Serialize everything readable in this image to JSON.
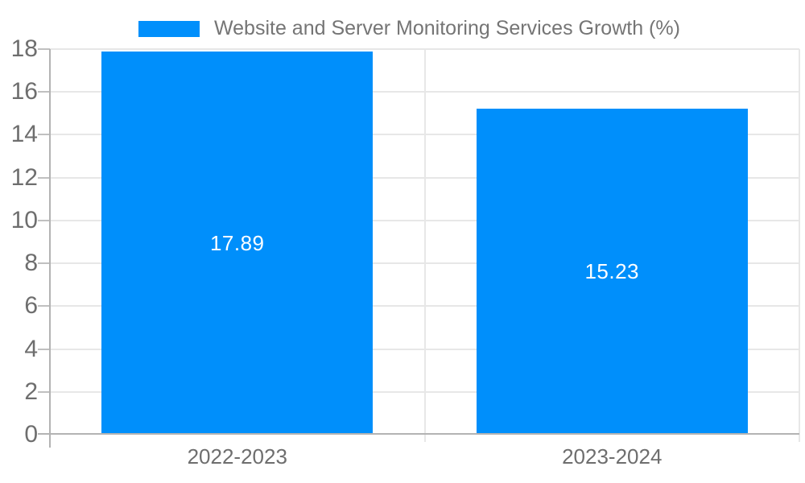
{
  "chart_data": {
    "type": "bar",
    "title": "Website and Server Monitoring Services Growth (%)",
    "xlabel": "",
    "ylabel": "",
    "categories": [
      "2022-2023",
      "2023-2024"
    ],
    "series": [
      {
        "name": "Website and Server Monitoring Services Growth (%)",
        "values": [
          17.89,
          15.23
        ]
      }
    ],
    "data_labels": [
      "17.89",
      "15.23"
    ],
    "ylim": [
      0,
      18
    ],
    "ytick_step": 2,
    "yticks": [
      0,
      2,
      4,
      6,
      8,
      10,
      12,
      14,
      16,
      18
    ],
    "grid": true,
    "legend_position": "top",
    "colors": {
      "bar": "#008FFB",
      "gridline": "#e7e7e7",
      "axis_line": "#b3b3b3",
      "tick": "#c0c0c0",
      "axis_label": "#6e6e6e",
      "legend_text": "#757575",
      "data_label": "#ffffff",
      "background": "#ffffff"
    }
  }
}
